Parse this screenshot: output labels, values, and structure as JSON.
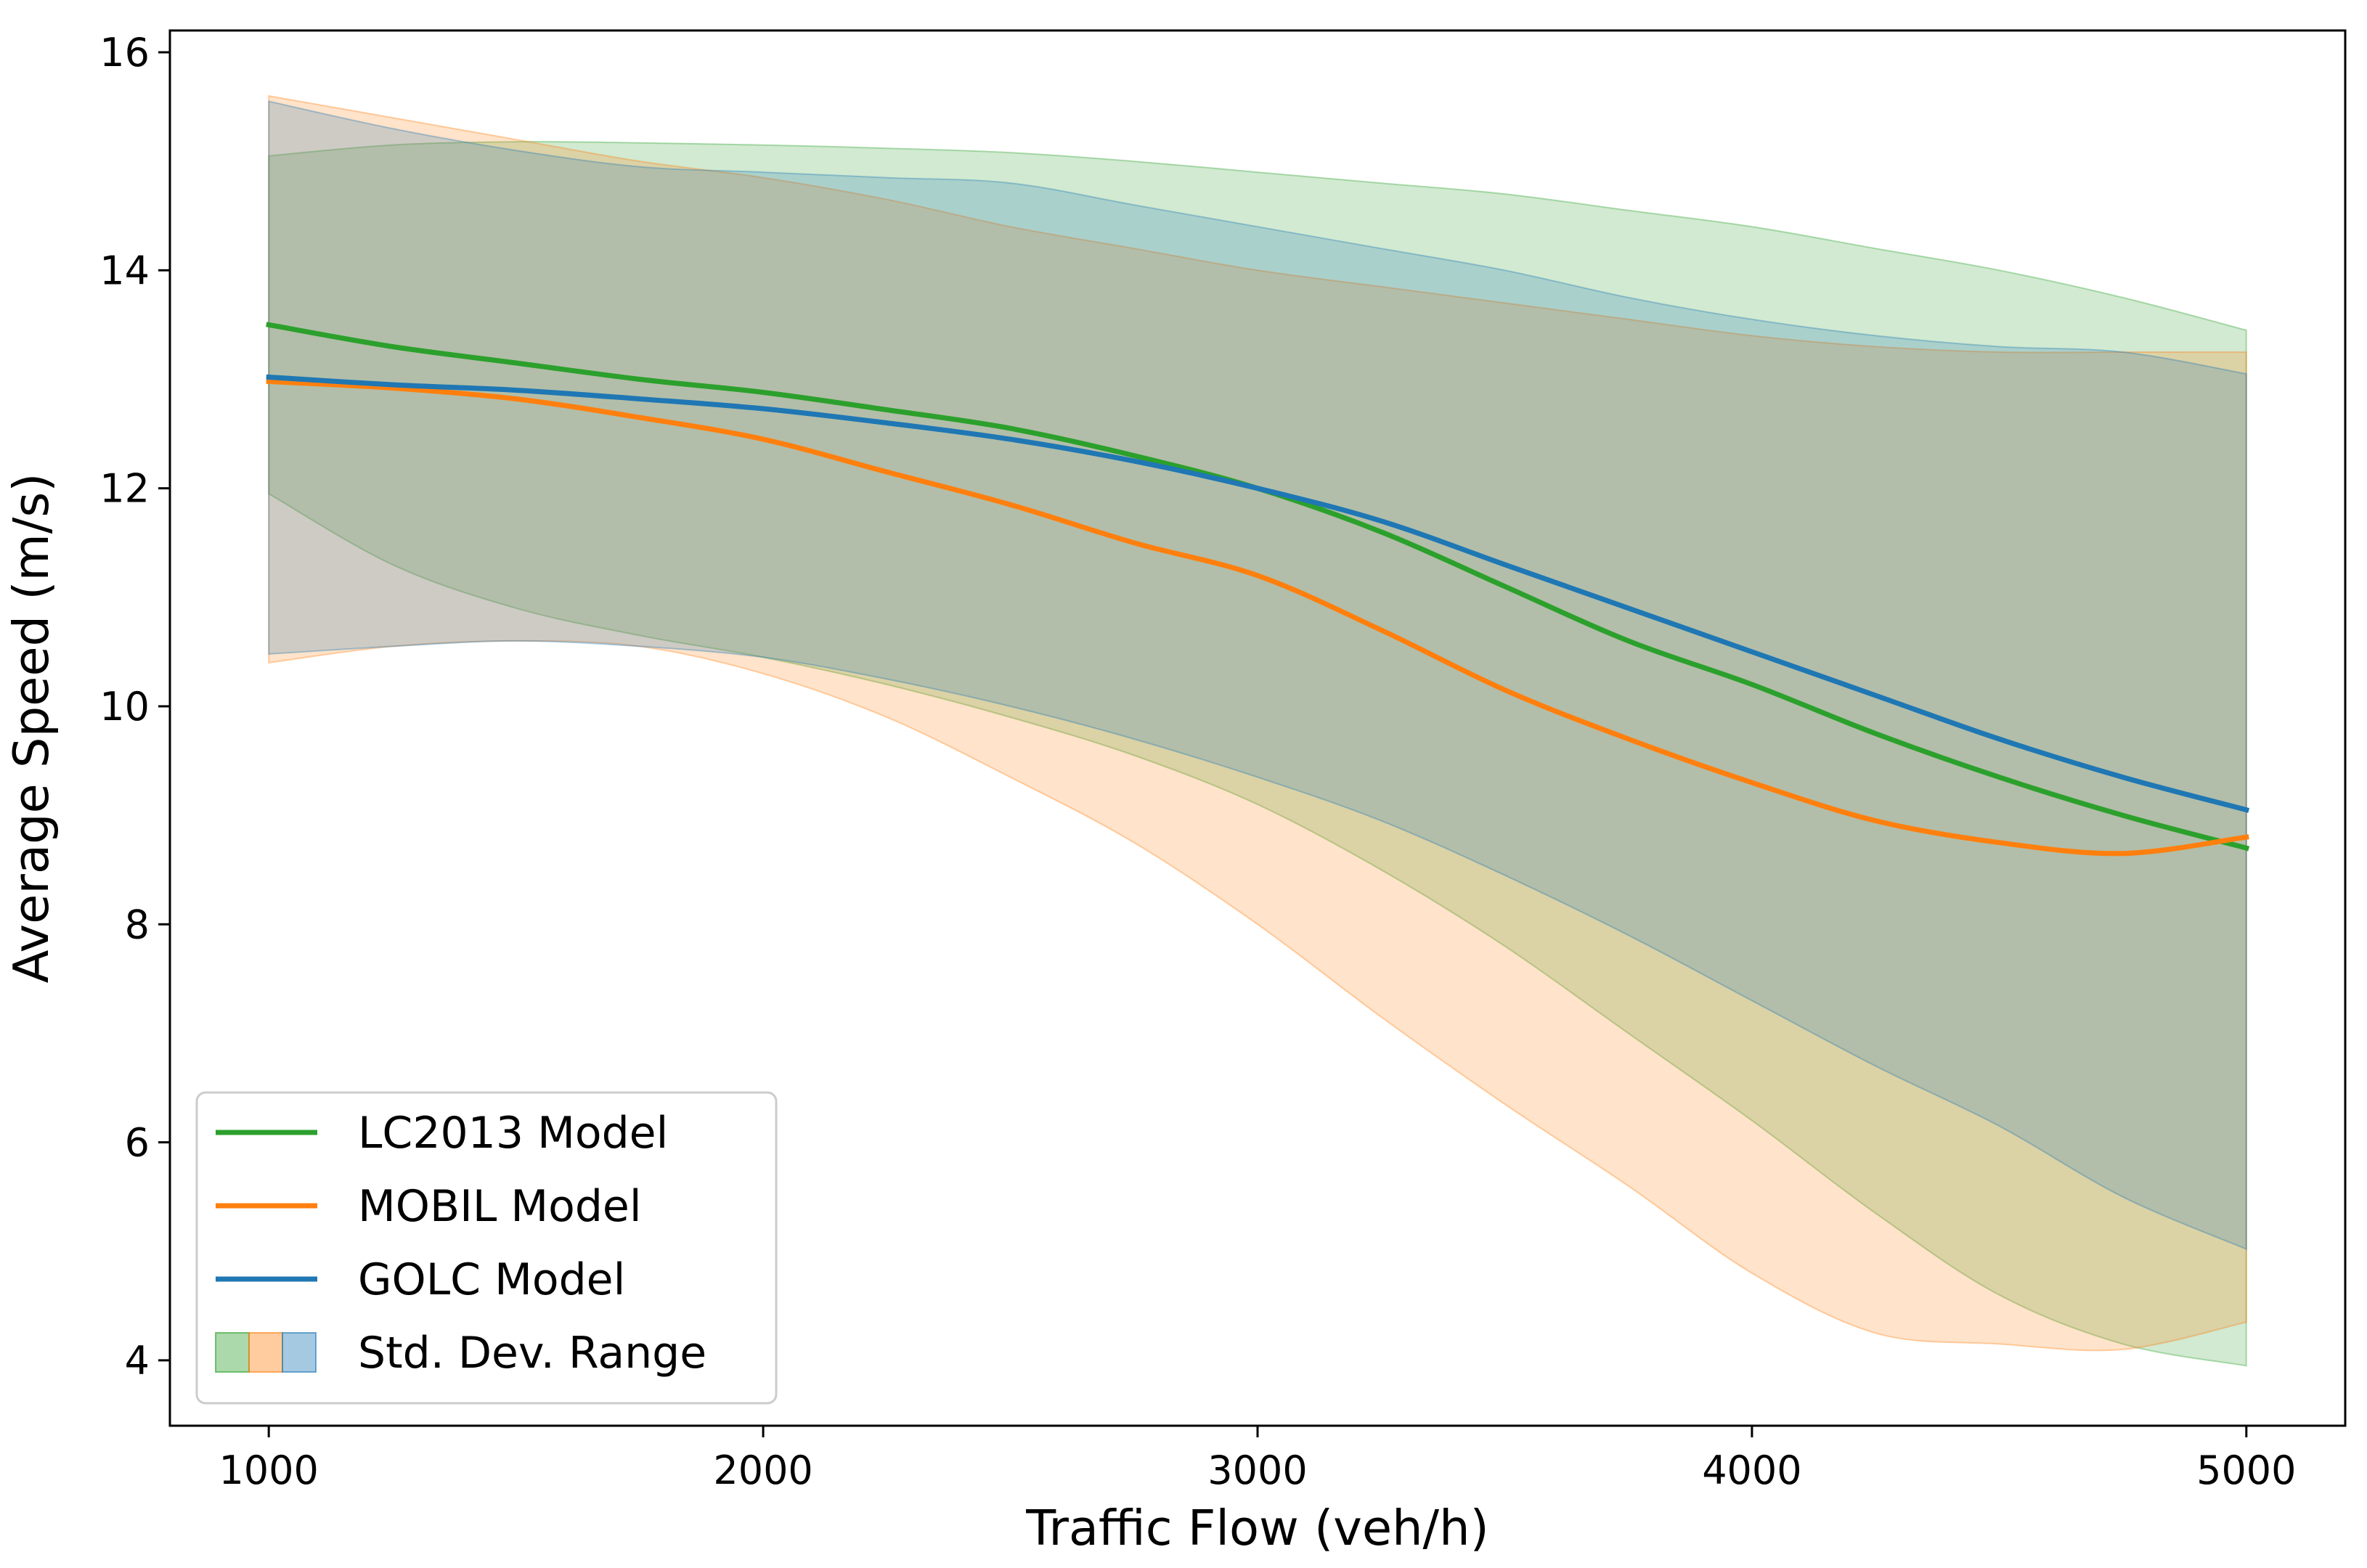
{
  "chart_data": {
    "type": "line",
    "title": "",
    "xlabel": "Traffic Flow (veh/h)",
    "ylabel": "Average Speed (m/s)",
    "xlim": [
      800,
      5200
    ],
    "ylim": [
      3.4,
      16.2
    ],
    "xticks": [
      1000,
      2000,
      3000,
      4000,
      5000
    ],
    "yticks": [
      4,
      6,
      8,
      10,
      12,
      14,
      16
    ],
    "x": [
      1000,
      1250,
      1500,
      1750,
      2000,
      2250,
      2500,
      2750,
      3000,
      3250,
      3500,
      3750,
      4000,
      4250,
      4500,
      4750,
      5000
    ],
    "series": [
      {
        "name": "LC2013 Model",
        "color": "#2ca02c",
        "values": [
          13.5,
          13.3,
          13.15,
          13.0,
          12.88,
          12.72,
          12.55,
          12.3,
          12.0,
          11.6,
          11.1,
          10.6,
          10.2,
          9.75,
          9.35,
          9.0,
          8.7
        ],
        "band_upper": [
          15.05,
          15.15,
          15.18,
          15.17,
          15.15,
          15.12,
          15.08,
          15.0,
          14.9,
          14.8,
          14.7,
          14.55,
          14.4,
          14.2,
          14.0,
          13.75,
          13.45
        ],
        "band_lower": [
          11.95,
          11.3,
          10.9,
          10.65,
          10.45,
          10.2,
          9.9,
          9.55,
          9.1,
          8.5,
          7.8,
          7.0,
          6.2,
          5.35,
          4.6,
          4.15,
          3.95
        ]
      },
      {
        "name": "MOBIL Model",
        "color": "#ff7f0e",
        "values": [
          12.98,
          12.92,
          12.82,
          12.65,
          12.45,
          12.15,
          11.85,
          11.5,
          11.2,
          10.7,
          10.15,
          9.7,
          9.3,
          8.95,
          8.75,
          8.65,
          8.8
        ],
        "band_upper": [
          15.6,
          15.4,
          15.2,
          15.0,
          14.85,
          14.65,
          14.4,
          14.2,
          14.0,
          13.85,
          13.7,
          13.55,
          13.4,
          13.3,
          13.25,
          13.25,
          13.25
        ],
        "band_lower": [
          10.4,
          10.55,
          10.6,
          10.55,
          10.3,
          9.9,
          9.35,
          8.75,
          8.0,
          7.15,
          6.35,
          5.6,
          4.8,
          4.25,
          4.15,
          4.1,
          4.35
        ]
      },
      {
        "name": "GOLC Model",
        "color": "#1f77b4",
        "values": [
          13.02,
          12.95,
          12.9,
          12.82,
          12.73,
          12.6,
          12.45,
          12.25,
          12.0,
          11.7,
          11.3,
          10.9,
          10.5,
          10.1,
          9.7,
          9.35,
          9.05
        ],
        "band_upper": [
          15.55,
          15.3,
          15.1,
          14.95,
          14.9,
          14.85,
          14.8,
          14.6,
          14.4,
          14.2,
          14.0,
          13.75,
          13.55,
          13.4,
          13.3,
          13.25,
          13.05
        ],
        "band_lower": [
          10.48,
          10.55,
          10.6,
          10.55,
          10.45,
          10.25,
          10.0,
          9.7,
          9.35,
          8.95,
          8.45,
          7.9,
          7.3,
          6.7,
          6.15,
          5.5,
          5.02
        ]
      }
    ],
    "legend": {
      "placement": "lower-left",
      "entries": [
        "LC2013 Model",
        "MOBIL Model",
        "GOLC Model",
        "Std. Dev. Range"
      ]
    }
  }
}
